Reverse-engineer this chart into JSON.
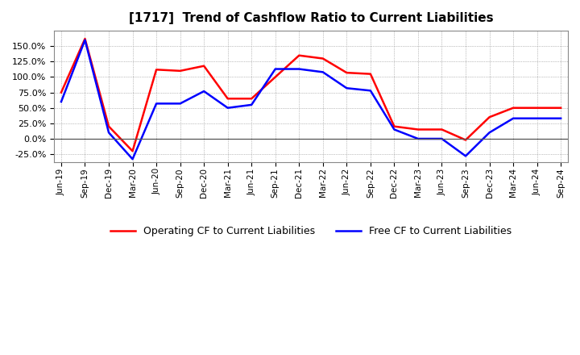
{
  "title": "[1717]  Trend of Cashflow Ratio to Current Liabilities",
  "x_labels": [
    "Jun-19",
    "Sep-19",
    "Dec-19",
    "Mar-20",
    "Jun-20",
    "Sep-20",
    "Dec-20",
    "Mar-21",
    "Jun-21",
    "Sep-21",
    "Dec-21",
    "Mar-22",
    "Jun-22",
    "Sep-22",
    "Dec-22",
    "Mar-23",
    "Jun-23",
    "Sep-23",
    "Dec-23",
    "Mar-24",
    "Jun-24",
    "Sep-24"
  ],
  "operating_cf": [
    75.0,
    162.0,
    20.0,
    -20.0,
    112.0,
    110.0,
    118.0,
    65.0,
    65.0,
    100.0,
    135.0,
    130.0,
    107.0,
    105.0,
    20.0,
    15.0,
    15.0,
    -2.0,
    35.0,
    50.0,
    50.0,
    50.0
  ],
  "free_cf": [
    60.0,
    160.0,
    10.0,
    -33.0,
    57.0,
    57.0,
    77.0,
    50.0,
    55.0,
    113.0,
    113.0,
    108.0,
    82.0,
    78.0,
    15.0,
    0.0,
    0.0,
    -28.0,
    10.0,
    33.0,
    33.0,
    33.0
  ],
  "operating_cf_color": "#ff0000",
  "free_cf_color": "#0000ff",
  "ylim": [
    -37.5,
    175.0
  ],
  "yticks": [
    -25.0,
    0.0,
    25.0,
    50.0,
    75.0,
    100.0,
    125.0,
    150.0
  ],
  "background_color": "#ffffff",
  "grid_color": "#888888",
  "legend_operating": "Operating CF to Current Liabilities",
  "legend_free": "Free CF to Current Liabilities",
  "title_fontsize": 11,
  "linewidth": 1.8
}
